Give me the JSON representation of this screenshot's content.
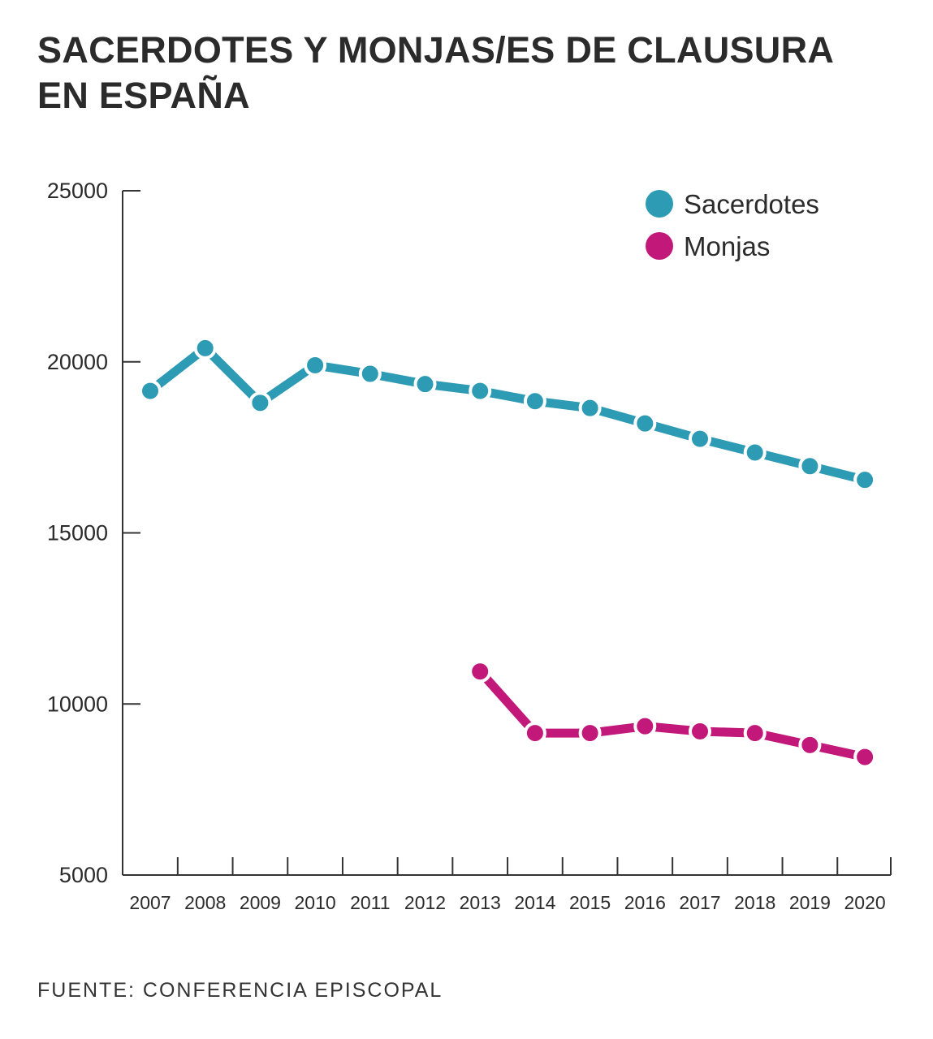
{
  "header": {
    "title_line1": "SACERDOTES Y MONJAS/ES DE CLAUSURA",
    "title_line2": "EN ESPAÑA"
  },
  "footer": {
    "source": "FUENTE: CONFERENCIA EPISCOPAL"
  },
  "colors": {
    "sacerdotes": "#2e9bb5",
    "monjas": "#c2187a",
    "axis": "#333333",
    "text": "#2b2b2b"
  },
  "chart_data": {
    "type": "line",
    "title": "SACERDOTES Y MONJAS/ES DE CLAUSURA EN ESPAÑA",
    "xlabel": "",
    "ylabel": "",
    "x": [
      "2007",
      "2008",
      "2009",
      "2010",
      "2011",
      "2012",
      "2013",
      "2014",
      "2015",
      "2016",
      "2017",
      "2018",
      "2019",
      "2020"
    ],
    "ylim": [
      5000,
      25000
    ],
    "yticks": [
      5000,
      10000,
      15000,
      20000,
      25000
    ],
    "grid": false,
    "legend": "top-right",
    "series": [
      {
        "name": "Sacerdotes",
        "color": "#2e9bb5",
        "values": [
          19150,
          20400,
          18800,
          19900,
          19650,
          19350,
          19150,
          18850,
          18650,
          18200,
          17750,
          17350,
          16950,
          16550
        ]
      },
      {
        "name": "Monjas",
        "color": "#c2187a",
        "values": [
          null,
          null,
          null,
          null,
          null,
          null,
          10950,
          9150,
          9150,
          9350,
          9200,
          9150,
          8800,
          8450
        ]
      }
    ]
  }
}
